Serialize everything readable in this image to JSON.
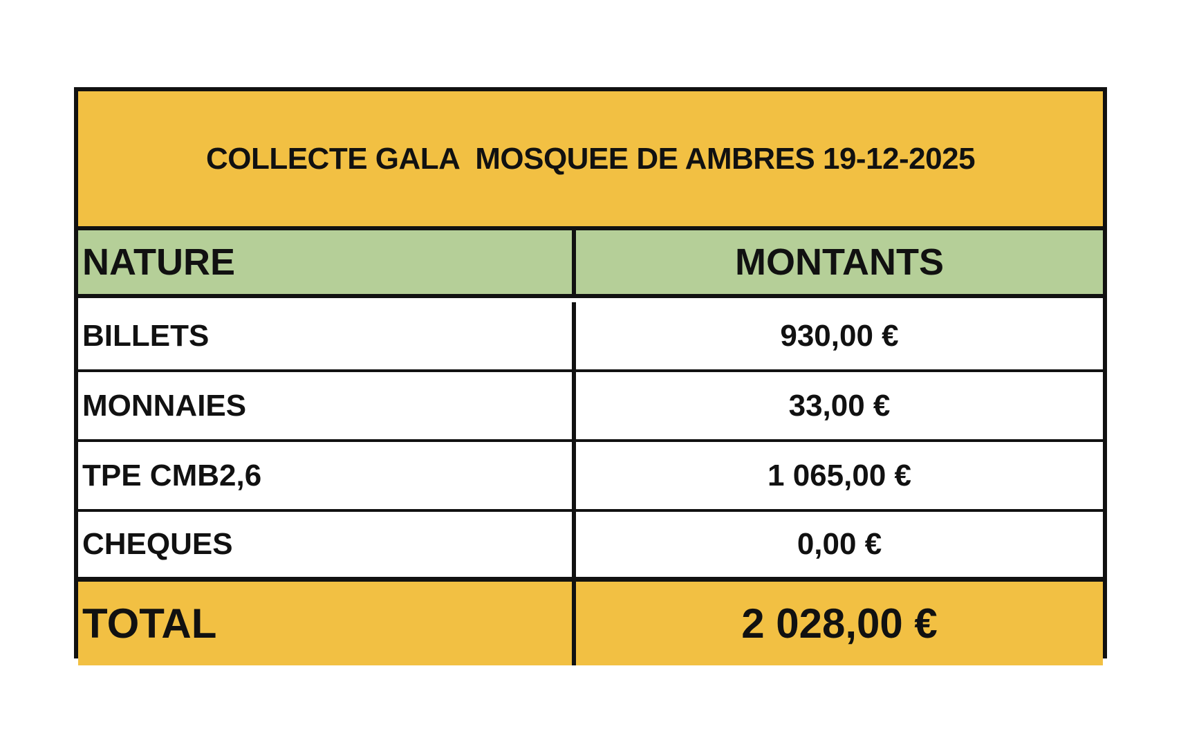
{
  "title": "COLLECTE GALA  MOSQUEE DE AMBRES 19-12-2025",
  "headers": [
    "NATURE",
    "MONTANTS"
  ],
  "rows": [
    {
      "nature": "BILLETS",
      "montant": "930,00 €"
    },
    {
      "nature": "MONNAIES",
      "montant": "33,00 €"
    },
    {
      "nature": "TPE CMB2,6",
      "montant": "1 065,00 €"
    },
    {
      "nature": "CHEQUES",
      "montant": "0,00 €"
    }
  ],
  "total": {
    "label": "TOTAL",
    "montant": "2 028,00 €"
  },
  "colors": {
    "title_bg": "#f2c043",
    "header_bg": "#b5cf98",
    "total_bg": "#f2c043"
  }
}
